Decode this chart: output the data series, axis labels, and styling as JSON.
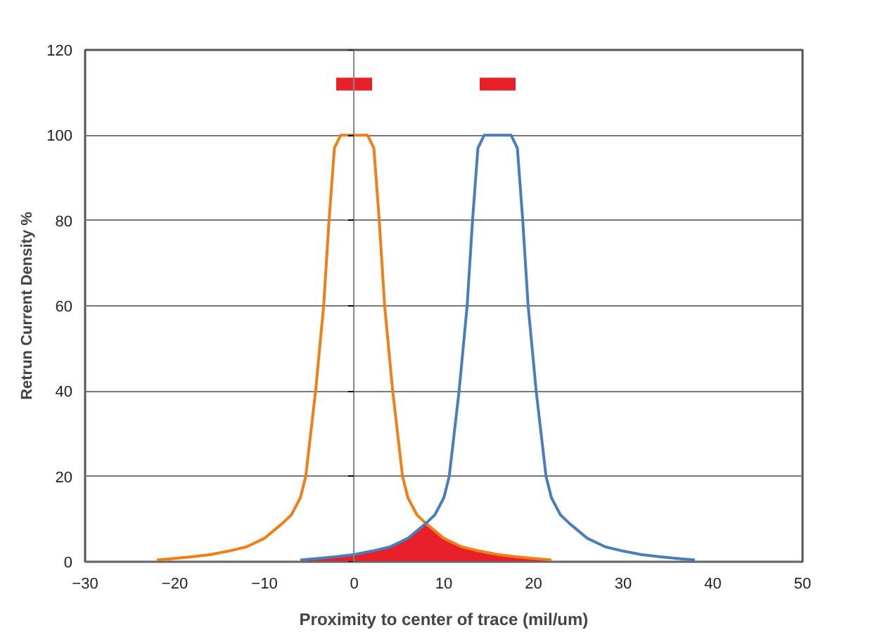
{
  "chart_data": {
    "type": "line",
    "xlabel": "Proximity to center of trace (mil/um)",
    "ylabel": "Retrun Current Density %",
    "xlim": [
      -30,
      50
    ],
    "ylim": [
      0,
      120
    ],
    "xticks": [
      -30,
      -20,
      -10,
      0,
      10,
      20,
      30,
      40,
      50
    ],
    "yticks": [
      0,
      20,
      40,
      60,
      80,
      100,
      120
    ],
    "grid": "y",
    "series": [
      {
        "type": "area",
        "color": "#e8202a",
        "x": [
          -6,
          -4,
          -2,
          0,
          2,
          4,
          6,
          7,
          8,
          9,
          10,
          12,
          14,
          16,
          18,
          20,
          22
        ],
        "values": [
          0.4,
          0.8,
          1.2,
          1.7,
          2.5,
          3.5,
          5.5,
          7,
          9,
          7,
          5.5,
          3.5,
          2.5,
          1.7,
          1.2,
          0.8,
          0.4
        ]
      },
      {
        "color": "#f07f1a",
        "x": [
          -22,
          -20,
          -18,
          -16,
          -14,
          -12,
          -10,
          -8,
          -7,
          -6,
          -5.4,
          -4.3,
          -3.4,
          -2.8,
          -2.2,
          -1.5,
          0,
          1.5,
          2.2,
          2.8,
          3.4,
          4.3,
          5.4,
          6,
          7,
          8,
          10,
          12,
          14,
          16,
          18,
          20,
          22
        ],
        "values": [
          0.4,
          0.8,
          1.2,
          1.7,
          2.5,
          3.5,
          5.5,
          9,
          11,
          15,
          20,
          40,
          60,
          80,
          97,
          100,
          100,
          100,
          97,
          80,
          60,
          40,
          20,
          15,
          11,
          9,
          5.5,
          3.5,
          2.5,
          1.7,
          1.2,
          0.8,
          0.4
        ]
      },
      {
        "color": "#4a7ebb",
        "x": [
          -6,
          -4,
          -2,
          0,
          2,
          4,
          6,
          8,
          9,
          10,
          10.6,
          11.7,
          12.6,
          13.2,
          13.8,
          14.5,
          16,
          17.5,
          18.2,
          18.8,
          19.4,
          20.3,
          21.4,
          22,
          23,
          24,
          26,
          28,
          30,
          32,
          34,
          36,
          38
        ],
        "values": [
          0.4,
          0.8,
          1.2,
          1.7,
          2.5,
          3.5,
          5.5,
          9,
          11,
          15,
          20,
          40,
          60,
          80,
          97,
          100,
          100,
          100,
          97,
          80,
          60,
          40,
          20,
          15,
          11,
          9,
          5.5,
          3.5,
          2.5,
          1.7,
          1.2,
          0.8,
          0.4
        ]
      },
      {
        "type": "bar",
        "color": "#e8202a",
        "x": [
          0,
          16
        ],
        "base": [
          110.5,
          110.5
        ],
        "values": [
          3,
          3
        ]
      }
    ]
  }
}
